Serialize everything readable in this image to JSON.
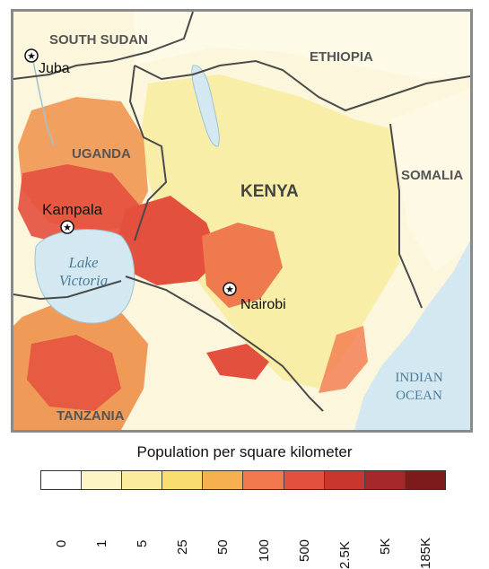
{
  "map": {
    "countries": {
      "south_sudan": "SOUTH SUDAN",
      "ethiopia": "ETHIOPIA",
      "uganda": "UGANDA",
      "kenya": "KENYA",
      "somalia": "SOMALIA",
      "tanzania": "TANZANIA"
    },
    "cities": {
      "juba": "Juba",
      "kampala": "Kampala",
      "nairobi": "Nairobi"
    },
    "water": {
      "lake_line1": "Lake",
      "lake_line2": "Victoria",
      "ocean_line1": "INDIAN",
      "ocean_line2": "OCEAN"
    },
    "colors": {
      "land_low": "#fbf6dc",
      "land_mid": "#f7e47a",
      "dense": "#e86a45",
      "very_dense": "#c9362d",
      "water": "#d3e8f1",
      "border": "#4a4a4a"
    }
  },
  "legend": {
    "title": "Population per square kilometer",
    "ticks": [
      "0",
      "1",
      "5",
      "25",
      "50",
      "100",
      "500",
      "2.5K",
      "5K",
      "185K"
    ],
    "colors": [
      "#ffffff",
      "#fdf5c4",
      "#fbec9c",
      "#f8dd70",
      "#f6b04f",
      "#f2794e",
      "#e4503e",
      "#c9362d",
      "#a5282a",
      "#7d1a1c"
    ]
  }
}
